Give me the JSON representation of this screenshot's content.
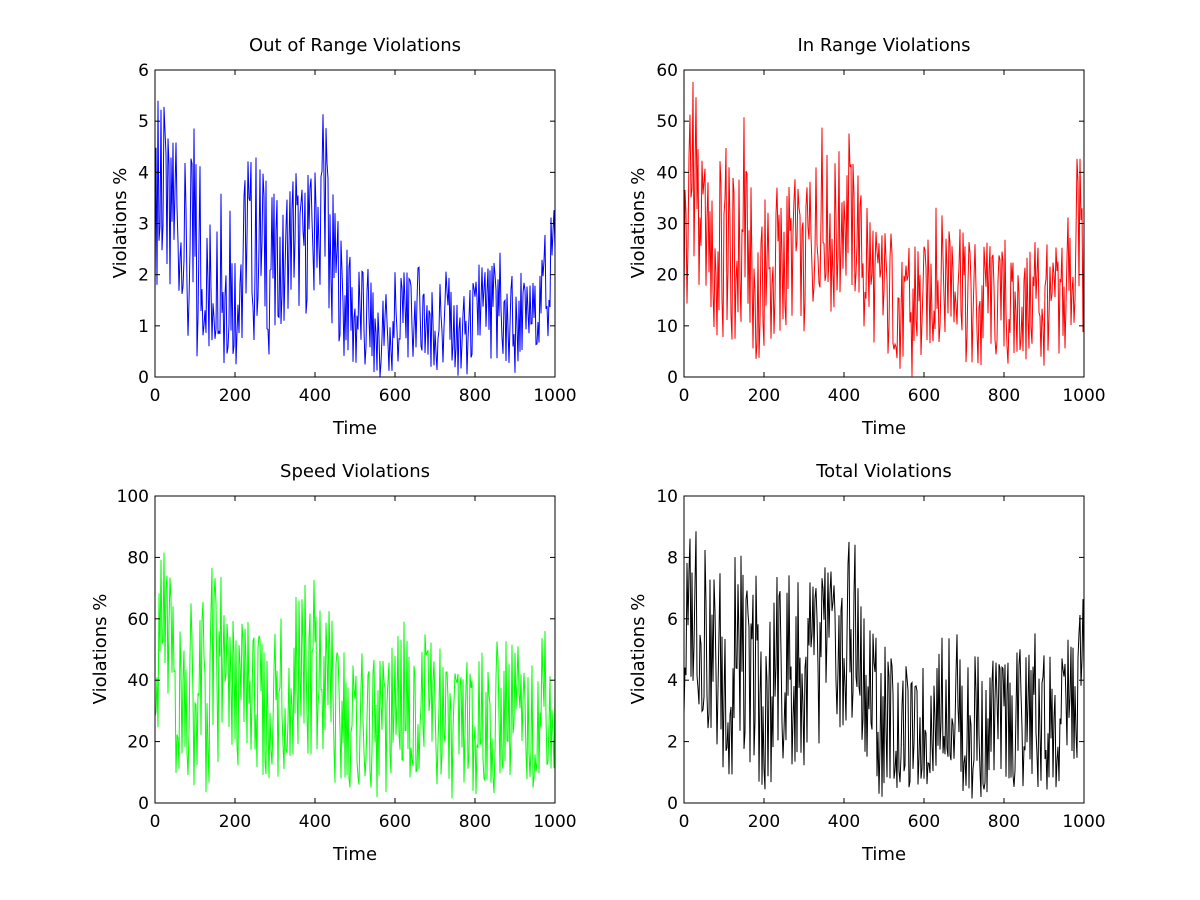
{
  "chart_data": [
    {
      "type": "line",
      "title": "Out of Range Violations",
      "xlabel": "Time",
      "ylabel": "Violations %",
      "xlim": [
        0,
        1000
      ],
      "ylim": [
        0,
        6
      ],
      "xticks": [
        0,
        200,
        400,
        600,
        800,
        1000
      ],
      "yticks": [
        0,
        1,
        2,
        3,
        4,
        5,
        6
      ],
      "color": "#0000ff",
      "grid": false,
      "x": [
        0,
        25,
        50,
        75,
        100,
        125,
        150,
        175,
        200,
        225,
        250,
        275,
        300,
        325,
        350,
        375,
        400,
        425,
        450,
        475,
        500,
        525,
        550,
        575,
        600,
        625,
        650,
        675,
        700,
        725,
        750,
        775,
        800,
        825,
        850,
        875,
        900,
        925,
        950,
        975,
        1000
      ],
      "values": [
        2.5,
        3.6,
        3.0,
        2.4,
        1.8,
        1.6,
        1.9,
        2.0,
        1.7,
        2.6,
        2.7,
        2.3,
        2.1,
        2.2,
        2.8,
        2.6,
        3.2,
        3.5,
        2.2,
        1.4,
        1.2,
        1.0,
        0.9,
        0.7,
        0.9,
        1.0,
        1.3,
        1.4,
        1.1,
        1.2,
        0.8,
        0.9,
        1.0,
        1.1,
        1.3,
        1.2,
        1.0,
        1.1,
        1.2,
        1.9,
        2.5
      ],
      "y_max": [
        5.6,
        5.3,
        4.6,
        5.1,
        5.6,
        3.9,
        4.0,
        3.5,
        3.2,
        4.2,
        5.3,
        4.0,
        4.1,
        3.6,
        4.3,
        4.0,
        4.5,
        5.3,
        3.7,
        2.6,
        2.3,
        2.5,
        2.2,
        1.6,
        2.2,
        2.1,
        2.4,
        2.6,
        2.0,
        2.1,
        1.8,
        1.9,
        2.2,
        2.4,
        2.6,
        2.3,
        2.1,
        2.0,
        2.1,
        2.8,
        3.5
      ],
      "y_min": [
        1.2,
        1.9,
        1.6,
        0.9,
        0.3,
        0.6,
        0.4,
        0.0,
        0.1,
        0.8,
        0.7,
        0.2,
        0.8,
        0.9,
        1.0,
        0.6,
        1.6,
        1.9,
        0.5,
        0.0,
        0.0,
        0.1,
        0.0,
        0.0,
        0.1,
        0.0,
        0.2,
        0.4,
        0.0,
        0.1,
        0.0,
        0.0,
        0.0,
        0.3,
        0.2,
        0.3,
        0.0,
        0.1,
        0.3,
        0.5,
        0.4
      ]
    },
    {
      "type": "line",
      "title": "In Range Violations",
      "xlabel": "Time",
      "ylabel": "Violations %",
      "xlim": [
        0,
        1000
      ],
      "ylim": [
        0,
        60
      ],
      "xticks": [
        0,
        200,
        400,
        600,
        800,
        1000
      ],
      "yticks": [
        0,
        10,
        20,
        30,
        40,
        50,
        60
      ],
      "color": "#ff0000",
      "grid": false,
      "x": [
        0,
        25,
        50,
        75,
        100,
        125,
        150,
        175,
        200,
        225,
        250,
        275,
        300,
        325,
        350,
        375,
        400,
        425,
        450,
        475,
        500,
        525,
        550,
        575,
        600,
        625,
        650,
        675,
        700,
        725,
        750,
        775,
        800,
        825,
        850,
        875,
        900,
        925,
        950,
        975,
        1000
      ],
      "values": [
        28,
        38,
        30,
        24,
        20,
        22,
        25,
        18,
        16,
        20,
        26,
        24,
        22,
        27,
        30,
        32,
        34,
        30,
        22,
        16,
        14,
        15,
        14,
        12,
        16,
        18,
        22,
        26,
        18,
        16,
        13,
        15,
        14,
        13,
        15,
        16,
        14,
        13,
        15,
        22,
        28
      ],
      "y_max": [
        49,
        59,
        45,
        39,
        48,
        45,
        51,
        40,
        35,
        36,
        44,
        40,
        35,
        45,
        50,
        47,
        50,
        46,
        38,
        30,
        28,
        30,
        26,
        26,
        30,
        32,
        38,
        35,
        28,
        30,
        26,
        28,
        27,
        26,
        28,
        28,
        27,
        25,
        28,
        40,
        50
      ],
      "y_min": [
        12,
        18,
        14,
        8,
        5,
        7,
        10,
        4,
        0,
        5,
        9,
        6,
        7,
        12,
        14,
        12,
        16,
        13,
        7,
        3,
        0,
        2,
        0,
        0,
        3,
        4,
        8,
        10,
        3,
        0,
        0,
        2,
        0,
        3,
        1,
        4,
        0,
        3,
        4,
        8,
        8
      ]
    },
    {
      "type": "line",
      "title": "Speed Violations",
      "xlabel": "Time",
      "ylabel": "Violations %",
      "xlim": [
        0,
        1000
      ],
      "ylim": [
        0,
        100
      ],
      "xticks": [
        0,
        200,
        400,
        600,
        800,
        1000
      ],
      "yticks": [
        0,
        20,
        40,
        60,
        80,
        100
      ],
      "color": "#00ff00",
      "grid": false,
      "x": [
        0,
        25,
        50,
        75,
        100,
        125,
        150,
        175,
        200,
        225,
        250,
        275,
        300,
        325,
        350,
        375,
        400,
        425,
        450,
        475,
        500,
        525,
        550,
        575,
        600,
        625,
        650,
        675,
        700,
        725,
        750,
        775,
        800,
        825,
        850,
        875,
        900,
        925,
        950,
        975,
        1000
      ],
      "values": [
        45,
        50,
        42,
        38,
        36,
        35,
        40,
        34,
        32,
        34,
        36,
        33,
        32,
        35,
        38,
        40,
        42,
        38,
        30,
        26,
        24,
        25,
        23,
        22,
        24,
        25,
        27,
        28,
        24,
        23,
        22,
        23,
        24,
        23,
        25,
        26,
        24,
        23,
        24,
        28,
        35
      ],
      "y_max": [
        76,
        84,
        70,
        66,
        73,
        68,
        86,
        66,
        60,
        62,
        62,
        60,
        58,
        64,
        68,
        72,
        74,
        68,
        58,
        52,
        50,
        52,
        48,
        47,
        54,
        60,
        56,
        58,
        52,
        50,
        47,
        48,
        50,
        52,
        55,
        56,
        52,
        50,
        54,
        58,
        66
      ],
      "y_min": [
        20,
        26,
        10,
        8,
        4,
        0,
        10,
        6,
        3,
        6,
        10,
        5,
        4,
        8,
        10,
        12,
        16,
        10,
        4,
        2,
        0,
        2,
        0,
        0,
        3,
        2,
        5,
        6,
        2,
        0,
        0,
        1,
        2,
        0,
        3,
        4,
        0,
        2,
        3,
        5,
        10
      ]
    },
    {
      "type": "line",
      "title": "Total Violations",
      "xlabel": "Time",
      "ylabel": "Violations %",
      "xlim": [
        0,
        1000
      ],
      "ylim": [
        0,
        10
      ],
      "xticks": [
        0,
        200,
        400,
        600,
        800,
        1000
      ],
      "yticks": [
        0,
        2,
        4,
        6,
        8,
        10
      ],
      "color": "#000000",
      "grid": false,
      "x": [
        0,
        25,
        50,
        75,
        100,
        125,
        150,
        175,
        200,
        225,
        250,
        275,
        300,
        325,
        350,
        375,
        400,
        425,
        450,
        475,
        500,
        525,
        550,
        575,
        600,
        625,
        650,
        675,
        700,
        725,
        750,
        775,
        800,
        825,
        850,
        875,
        900,
        925,
        950,
        975,
        1000
      ],
      "values": [
        4.5,
        6.0,
        5.2,
        4.4,
        4.0,
        3.6,
        4.2,
        3.5,
        3.2,
        3.8,
        4.4,
        3.9,
        3.7,
        4.2,
        4.6,
        4.8,
        5.2,
        4.8,
        3.7,
        2.8,
        2.4,
        2.5,
        2.3,
        2.0,
        2.4,
        2.6,
        3.0,
        3.2,
        2.6,
        2.4,
        2.1,
        2.3,
        2.4,
        2.3,
        2.6,
        2.7,
        2.4,
        2.3,
        2.5,
        3.5,
        4.3
      ],
      "y_max": [
        8.8,
        9.3,
        8.6,
        7.9,
        9.6,
        8.0,
        8.6,
        7.6,
        6.8,
        7.6,
        8.9,
        7.4,
        7.0,
        7.8,
        8.2,
        8.3,
        8.7,
        8.8,
        6.6,
        5.8,
        5.2,
        5.6,
        4.8,
        4.6,
        5.5,
        5.6,
        6.2,
        6.3,
        5.2,
        5.4,
        4.8,
        5.0,
        5.2,
        5.0,
        5.6,
        5.7,
        5.0,
        4.8,
        5.1,
        5.9,
        6.8
      ],
      "y_min": [
        2.6,
        3.2,
        2.0,
        1.3,
        0.8,
        0.7,
        1.5,
        0.7,
        0.3,
        0.8,
        1.5,
        0.8,
        0.9,
        1.4,
        2.0,
        1.6,
        2.5,
        2.1,
        0.7,
        0.1,
        0.0,
        0.3,
        0.0,
        0.0,
        0.3,
        0.4,
        0.9,
        1.0,
        0.1,
        0.0,
        0.0,
        0.3,
        0.0,
        0.4,
        0.2,
        0.6,
        0.0,
        0.4,
        0.6,
        1.0,
        1.4
      ]
    }
  ]
}
